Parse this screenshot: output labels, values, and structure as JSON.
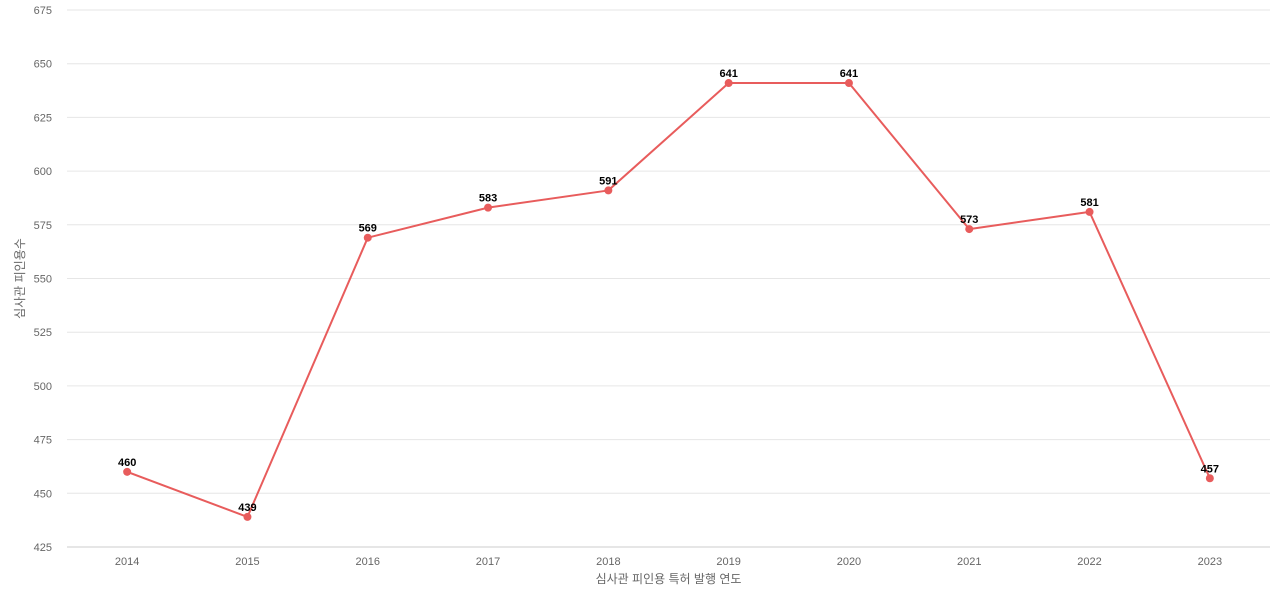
{
  "chart_data": {
    "type": "line",
    "title": "",
    "xlabel": "심사관 피인용 특허 발행 연도",
    "ylabel": "심사관 피인용수",
    "categories": [
      "2014",
      "2015",
      "2016",
      "2017",
      "2018",
      "2019",
      "2020",
      "2021",
      "2022",
      "2023"
    ],
    "series": [
      {
        "values": [
          460,
          439,
          569,
          583,
          591,
          641,
          641,
          573,
          581,
          457
        ]
      }
    ],
    "ylim": [
      425,
      675
    ],
    "yticks": [
      425,
      450,
      475,
      500,
      525,
      550,
      575,
      600,
      625,
      650,
      675
    ],
    "grid": true,
    "legend": "none",
    "line_color": "#e85c5c"
  }
}
